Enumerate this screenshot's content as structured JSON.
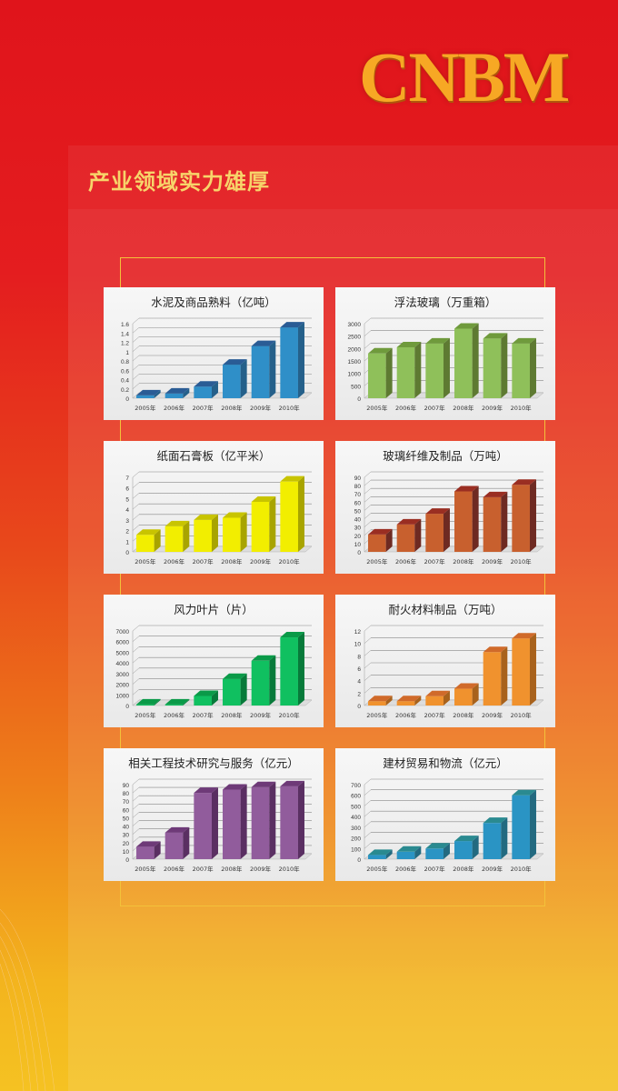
{
  "logo": "CNBM",
  "heading": "产业领域实力雄厚",
  "chart_data": [
    {
      "type": "bar",
      "title": "水泥及商品熟料（亿吨）",
      "categories": [
        "2005年",
        "2006年",
        "2007年",
        "2008年",
        "2009年",
        "2010年"
      ],
      "values": [
        0.06,
        0.1,
        0.25,
        0.72,
        1.12,
        1.52
      ],
      "ylim": [
        0,
        1.6
      ],
      "ticks": [
        "0",
        "0.2",
        "0.4",
        "0.6",
        "0.8",
        "1",
        "1.2",
        "1.4",
        "1.6"
      ],
      "color": "#2f8fc8",
      "side": "#25608a",
      "top": "#2a5c95",
      "grid": true
    },
    {
      "type": "bar",
      "title": "浮法玻璃（万重箱）",
      "categories": [
        "2005年",
        "2006年",
        "2007年",
        "2008年",
        "2009年",
        "2010年"
      ],
      "values": [
        1800,
        2050,
        2200,
        2800,
        2400,
        2200
      ],
      "ylim": [
        0,
        3000
      ],
      "ticks": [
        "0",
        "500",
        "1000",
        "1500",
        "2000",
        "2500",
        "3000"
      ],
      "color": "#8fc05a",
      "side": "#5e7a32",
      "top": "#6f9a3c",
      "grid": true
    },
    {
      "type": "bar",
      "title": "纸面石膏板（亿平米）",
      "categories": [
        "2005年",
        "2006年",
        "2007年",
        "2008年",
        "2009年",
        "2010年"
      ],
      "values": [
        1.6,
        2.4,
        3.0,
        3.2,
        4.7,
        6.6
      ],
      "ylim": [
        0,
        7
      ],
      "ticks": [
        "0",
        "1",
        "2",
        "3",
        "4",
        "5",
        "6",
        "7"
      ],
      "color": "#f2ee00",
      "side": "#a8a400",
      "top": "#c8c400",
      "grid": true
    },
    {
      "type": "bar",
      "title": "玻璃纤维及制品（万吨）",
      "categories": [
        "2005年",
        "2006年",
        "2007年",
        "2008年",
        "2009年",
        "2010年"
      ],
      "values": [
        21,
        33,
        46,
        73,
        66,
        81
      ],
      "ylim": [
        0,
        90
      ],
      "ticks": [
        "0",
        "10",
        "20",
        "30",
        "40",
        "50",
        "60",
        "70",
        "80",
        "90"
      ],
      "color": "#c8602e",
      "side": "#6e2a22",
      "top": "#9a2e22",
      "grid": true
    },
    {
      "type": "bar",
      "title": "风力叶片（片）",
      "categories": [
        "2005年",
        "2006年",
        "2007年",
        "2008年",
        "2009年",
        "2010年"
      ],
      "values": [
        100,
        100,
        900,
        2500,
        4200,
        6400
      ],
      "ylim": [
        0,
        7000
      ],
      "ticks": [
        "0",
        "1000",
        "2000",
        "3000",
        "4000",
        "5000",
        "6000",
        "7000"
      ],
      "color": "#10c060",
      "side": "#087a3a",
      "top": "#0a9a48",
      "grid": true
    },
    {
      "type": "bar",
      "title": "耐火材料制品（万吨）",
      "categories": [
        "2005年",
        "2006年",
        "2007年",
        "2008年",
        "2009年",
        "2010年"
      ],
      "values": [
        0.7,
        0.7,
        1.5,
        2.7,
        8.6,
        10.8
      ],
      "ylim": [
        0,
        12
      ],
      "ticks": [
        "0",
        "2",
        "4",
        "6",
        "8",
        "10",
        "12"
      ],
      "color": "#f0922e",
      "side": "#a8621c",
      "top": "#d06a2a",
      "grid": true
    },
    {
      "type": "bar",
      "title": "相关工程技术研究与服务（亿元）",
      "categories": [
        "2005年",
        "2006年",
        "2007年",
        "2008年",
        "2009年",
        "2010年"
      ],
      "values": [
        15,
        32,
        80,
        84,
        87,
        88
      ],
      "ylim": [
        0,
        90
      ],
      "ticks": [
        "0",
        "10",
        "20",
        "30",
        "40",
        "50",
        "60",
        "70",
        "80",
        "90"
      ],
      "color": "#915c9c",
      "side": "#5a2f62",
      "top": "#6e3a78",
      "grid": true
    },
    {
      "type": "bar",
      "title": "建材贸易和物流（亿元）",
      "categories": [
        "2005年",
        "2006年",
        "2007年",
        "2008年",
        "2009年",
        "2010年"
      ],
      "values": [
        40,
        70,
        100,
        170,
        340,
        600
      ],
      "ylim": [
        0,
        700
      ],
      "ticks": [
        "0",
        "100",
        "200",
        "300",
        "400",
        "500",
        "600",
        "700"
      ],
      "color": "#2a94c4",
      "side": "#236a80",
      "top": "#2a8a90",
      "grid": true
    }
  ]
}
